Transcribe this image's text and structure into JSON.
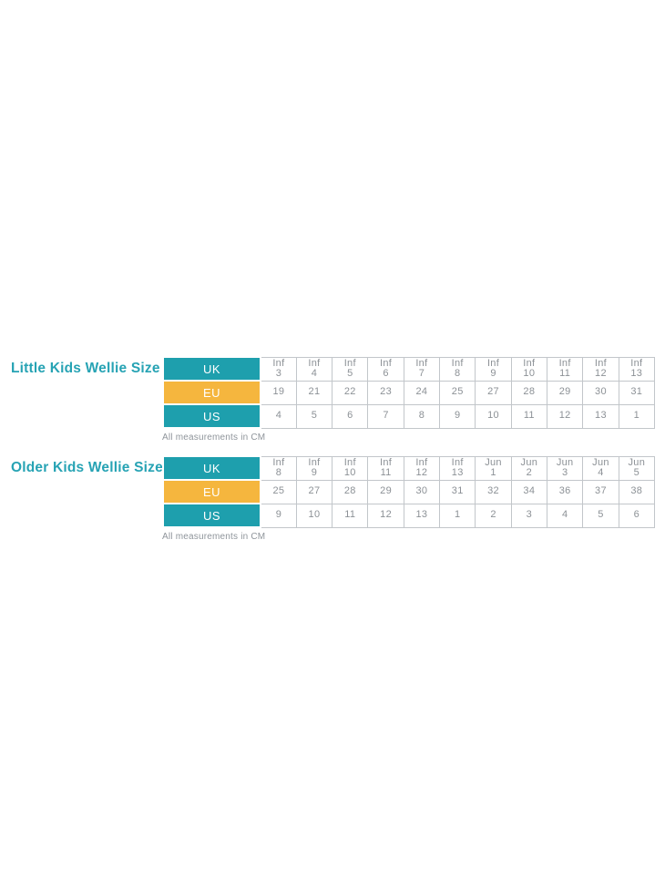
{
  "colors": {
    "teal": "#1E9FAD",
    "orange": "#F5B63E",
    "title_teal": "#27A3B4",
    "cell_text": "#8C9196",
    "border": "#C2C6CA",
    "note_text": "#8F959B"
  },
  "chart_data": [
    {
      "type": "table",
      "title": "Little Kids Wellie Size",
      "note": "All measurements in CM",
      "rows": [
        {
          "label": "UK",
          "style": "teal",
          "cells": [
            [
              "Inf",
              "3"
            ],
            [
              "Inf",
              "4"
            ],
            [
              "Inf",
              "5"
            ],
            [
              "Inf",
              "6"
            ],
            [
              "Inf",
              "7"
            ],
            [
              "Inf",
              "8"
            ],
            [
              "Inf",
              "9"
            ],
            [
              "Inf",
              "10"
            ],
            [
              "Inf",
              "11"
            ],
            [
              "Inf",
              "12"
            ],
            [
              "Inf",
              "13"
            ]
          ]
        },
        {
          "label": "EU",
          "style": "orange",
          "cells": [
            "19",
            "21",
            "22",
            "23",
            "24",
            "25",
            "27",
            "28",
            "29",
            "30",
            "31"
          ]
        },
        {
          "label": "US",
          "style": "teal",
          "cells": [
            "4",
            "5",
            "6",
            "7",
            "8",
            "9",
            "10",
            "11",
            "12",
            "13",
            "1"
          ]
        }
      ]
    },
    {
      "type": "table",
      "title": "Older Kids Wellie Size",
      "note": "All measurements in CM",
      "rows": [
        {
          "label": "UK",
          "style": "teal",
          "cells": [
            [
              "Inf",
              "8"
            ],
            [
              "Inf",
              "9"
            ],
            [
              "Inf",
              "10"
            ],
            [
              "Inf",
              "11"
            ],
            [
              "Inf",
              "12"
            ],
            [
              "Inf",
              "13"
            ],
            [
              "Jun",
              "1"
            ],
            [
              "Jun",
              "2"
            ],
            [
              "Jun",
              "3"
            ],
            [
              "Jun",
              "4"
            ],
            [
              "Jun",
              "5"
            ]
          ]
        },
        {
          "label": "EU",
          "style": "orange",
          "cells": [
            "25",
            "27",
            "28",
            "29",
            "30",
            "31",
            "32",
            "34",
            "36",
            "37",
            "38"
          ]
        },
        {
          "label": "US",
          "style": "teal",
          "cells": [
            "9",
            "10",
            "11",
            "12",
            "13",
            "1",
            "2",
            "3",
            "4",
            "5",
            "6"
          ]
        }
      ]
    }
  ]
}
